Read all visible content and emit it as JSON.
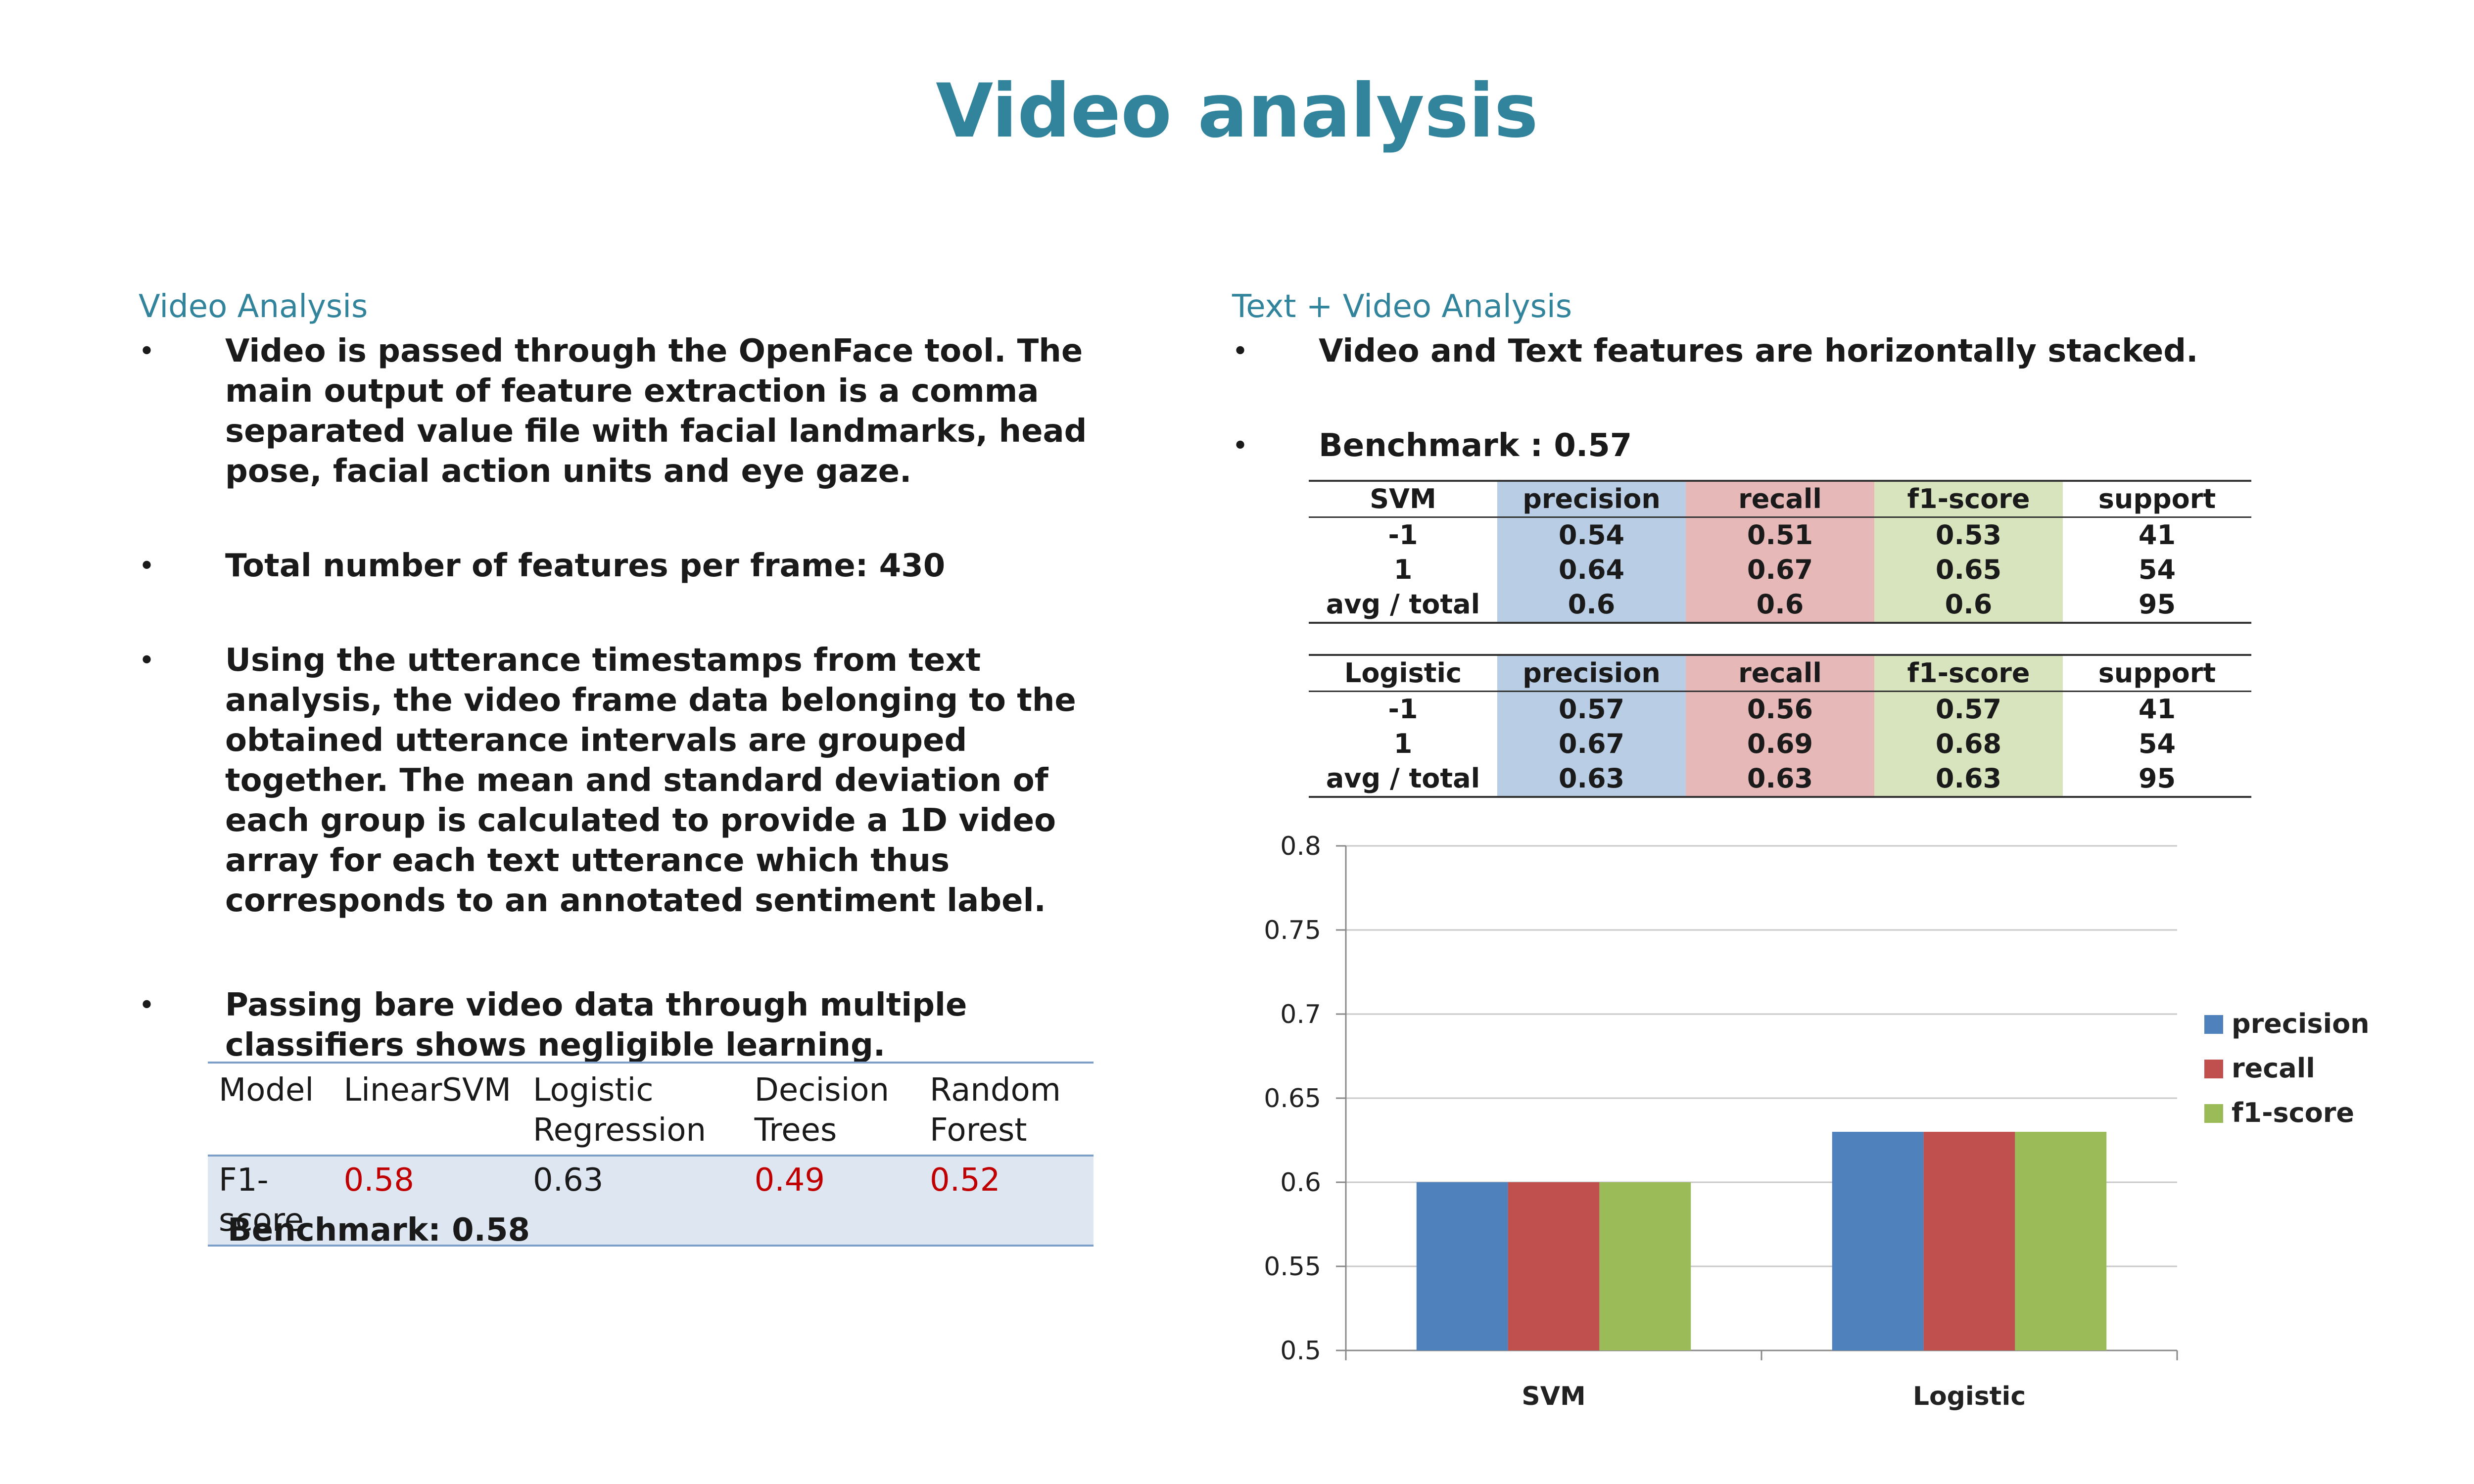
{
  "title": "Video analysis",
  "left": {
    "heading": "Video Analysis",
    "bullet_char": "•",
    "bullets": [
      "Video is passed through the OpenFace tool. The main output of feature extraction is a comma separated value file with facial landmarks, head pose, facial action units and eye gaze.",
      "Total number of features per frame:  430",
      "Using the utterance timestamps from text analysis, the video frame data belonging to the obtained utterance intervals are grouped together. The mean and standard deviation of each group is calculated to provide a 1D video array for each text utterance which thus corresponds to an annotated sentiment label.",
      "Passing bare video data through multiple classifiers shows negligible learning."
    ],
    "table": {
      "headers": [
        "Model",
        "LinearSVM",
        "Logistic Regression",
        "Decision Trees",
        "Random Forest"
      ],
      "row_label": "F1-score",
      "values": [
        "0.58",
        "0.63",
        "0.49",
        "0.52"
      ]
    },
    "benchmark": "Benchmark: 0.58"
  },
  "right": {
    "heading": "Text + Video Analysis",
    "bullets": [
      "Video and Text features are horizontally stacked.",
      "Benchmark : 0.57"
    ],
    "tables": [
      {
        "header": [
          "SVM",
          "precision",
          "recall",
          "f1-score",
          "support"
        ],
        "rows": [
          [
            "-1",
            "0.54",
            "0.51",
            "0.53",
            "41"
          ],
          [
            "1",
            "0.64",
            "0.67",
            "0.65",
            "54"
          ],
          [
            "avg / total",
            "0.6",
            "0.6",
            "0.6",
            "95"
          ]
        ]
      },
      {
        "header": [
          "Logistic",
          "precision",
          "recall",
          "f1-score",
          "support"
        ],
        "rows": [
          [
            "-1",
            "0.57",
            "0.56",
            "0.57",
            "41"
          ],
          [
            "1",
            "0.67",
            "0.69",
            "0.68",
            "54"
          ],
          [
            "avg / total",
            "0.63",
            "0.63",
            "0.63",
            "95"
          ]
        ]
      }
    ]
  },
  "chart_data": {
    "type": "bar",
    "categories": [
      "SVM",
      "Logistic"
    ],
    "series": [
      {
        "name": "precision",
        "values": [
          0.6,
          0.63
        ],
        "color": "#4F81BD"
      },
      {
        "name": "recall",
        "values": [
          0.6,
          0.63
        ],
        "color": "#C0504D"
      },
      {
        "name": "f1-score",
        "values": [
          0.6,
          0.63
        ],
        "color": "#9BBB59"
      }
    ],
    "ylim": [
      0.5,
      0.8
    ],
    "yticks": [
      "0.8",
      "0.75",
      "0.7",
      "0.65",
      "0.6",
      "0.55",
      "0.5"
    ],
    "grid": true,
    "legend": "right"
  }
}
